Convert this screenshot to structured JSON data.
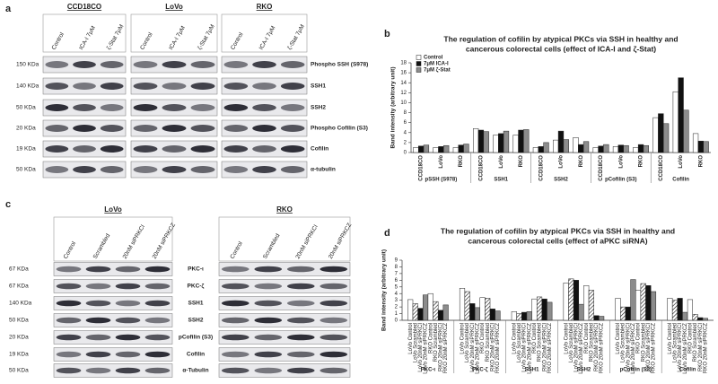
{
  "figure": {
    "panel_labels": [
      "a",
      "b",
      "c",
      "d"
    ],
    "blot_a": {
      "cell_lines": [
        "CCD18CO",
        "LoVo",
        "RKO"
      ],
      "lanes": [
        "Control",
        "ICA-I 7μM",
        "ζ-Stat 7μM"
      ],
      "sizes": [
        "150 KDa",
        "140 KDa",
        "50 KDa",
        "20 KDa",
        "19 KDa",
        "50 KDa"
      ],
      "proteins": [
        "Phospho SSH (S978)",
        "SSH1",
        "SSH2",
        "Phospho Cofilin (S3)",
        "Cofilin",
        "α-tubulin"
      ]
    },
    "blot_c": {
      "cell_lines": [
        "LoVo",
        "RKO"
      ],
      "lanes": [
        "Control",
        "Scrambled",
        "20nM siPRKCI",
        "20nM siPRKCZ"
      ],
      "sizes": [
        "67 KDa",
        "67 KDa",
        "140 KDa",
        "50 KDa",
        "20 KDa",
        "19 KDa",
        "50 KDa"
      ],
      "proteins": [
        "PKC-ι",
        "PKC-ζ",
        "SSH1",
        "SSH2",
        "pCofilin (S3)",
        "Cofilin",
        "α-Tubulin"
      ]
    }
  },
  "chart_data": [
    {
      "type": "bar",
      "title": [
        "The regulation of cofilin by atypical PKCs via SSH in healthy and",
        "cancerous colorectal cells (effect of ICA-I and ζ-Stat)"
      ],
      "y_label": "Band intensity (arbitrary unit)",
      "categories": [
        "CCD18CO",
        "LoVo",
        "RKO",
        "CCD18CO",
        "LoVo",
        "RKO",
        "CCD18CO",
        "LoVo",
        "RKO",
        "CCD18CO",
        "LoVo",
        "RKO",
        "CCD18CO",
        "LoVo",
        "RKO"
      ],
      "groups": [
        "pSSH (S978)",
        "SSH1",
        "SSH2",
        "pCofilin (S3)",
        "Cofilin"
      ],
      "series": [
        {
          "name": "Control",
          "color": "#ffffff",
          "values": [
            1.0,
            1.0,
            1.0,
            4.8,
            3.5,
            3.5,
            1.0,
            2.5,
            3.0,
            1.0,
            1.2,
            1.0,
            7.0,
            12.2,
            3.8
          ]
        },
        {
          "name": "7μM ICA-I",
          "color": "#111111",
          "values": [
            1.3,
            1.2,
            1.5,
            4.5,
            3.8,
            4.5,
            1.2,
            4.3,
            1.6,
            1.3,
            1.5,
            1.6,
            7.8,
            15.0,
            2.3
          ]
        },
        {
          "name": "7μM ζ-Stat",
          "color": "#8c8c8c",
          "values": [
            1.5,
            1.4,
            1.7,
            4.2,
            4.3,
            4.6,
            2.0,
            2.6,
            2.2,
            1.6,
            1.4,
            1.4,
            5.8,
            8.5,
            2.2
          ]
        }
      ],
      "ylim": [
        0,
        18
      ],
      "yticks": [
        0,
        2,
        4,
        6,
        8,
        10,
        12,
        14,
        16,
        18
      ],
      "legend": "top-left"
    },
    {
      "type": "bar",
      "title": [
        "The regulation of cofilin by atypical PKCs via SSH in healthy and",
        "cancerous colorectal cells (effect of aPKC siRNA)"
      ],
      "y_label": "Band intensity (arbitrary unit)",
      "categories": [
        "PKC-ι",
        "PKC-ζ",
        "SSH1",
        "SSH2",
        "pCofilin (S3)",
        "Cofilin"
      ],
      "series": [
        {
          "name": "LoVo Control",
          "color": "#ffffff",
          "values": [
            3.1,
            4.8,
            1.3,
            5.6,
            3.3,
            3.3
          ]
        },
        {
          "name": "LoVo Scrambled",
          "color": "#ffffff",
          "hatch": true,
          "values": [
            2.5,
            4.3,
            1.0,
            6.2,
            2.0,
            3.0
          ]
        },
        {
          "name": "LoVo 20nM siPRKCI",
          "color": "#111111",
          "values": [
            1.8,
            2.5,
            1.2,
            6.0,
            2.0,
            3.3
          ]
        },
        {
          "name": "LoVo 20nM siPRKCZ",
          "color": "#8c8c8c",
          "values": [
            3.8,
            1.9,
            1.3,
            2.4,
            6.1,
            1.2
          ]
        },
        {
          "name": "RKO Control",
          "color": "#ffffff",
          "values": [
            4.0,
            3.4,
            3.2,
            5.2,
            4.5,
            3.1
          ]
        },
        {
          "name": "RKO Scrambled",
          "color": "#ffffff",
          "hatch": true,
          "values": [
            2.8,
            3.3,
            3.5,
            4.5,
            5.5,
            0.9
          ]
        },
        {
          "name": "RKO 20nM siPRKCI",
          "color": "#111111",
          "values": [
            1.5,
            1.7,
            3.2,
            0.7,
            5.2,
            0.4
          ]
        },
        {
          "name": "RKO 20nM siPRKCZ",
          "color": "#8c8c8c",
          "values": [
            2.3,
            1.4,
            2.7,
            0.6,
            4.3,
            0.3
          ]
        }
      ],
      "ylim": [
        0,
        9
      ],
      "yticks": [
        0,
        1,
        2,
        3,
        4,
        5,
        6,
        7,
        8,
        9
      ]
    }
  ]
}
